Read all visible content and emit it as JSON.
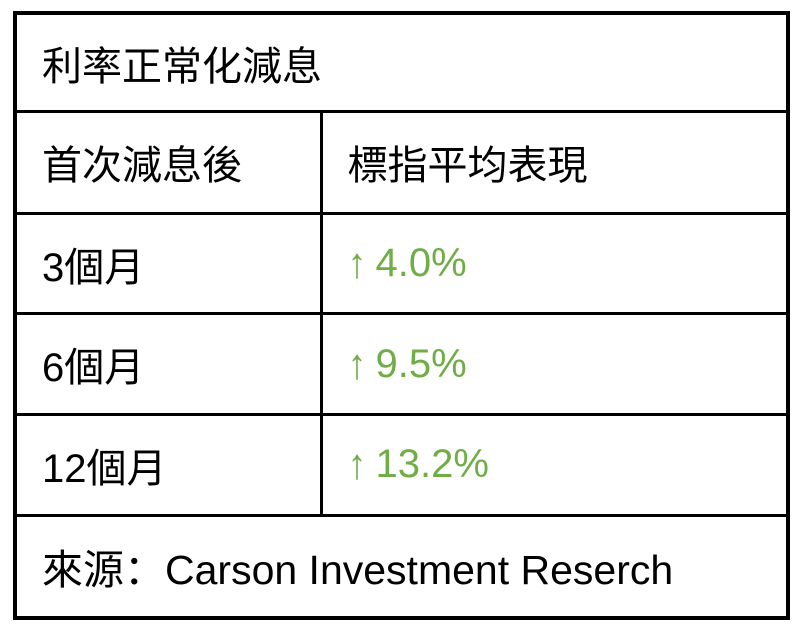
{
  "chart_data": {
    "type": "table",
    "title": "利率正常化減息",
    "columns": [
      "首次減息後",
      "標指平均表現"
    ],
    "rows": [
      {
        "period": "3個月",
        "direction": "up",
        "value": "4.0%"
      },
      {
        "period": "6個月",
        "direction": "up",
        "value": "9.5%"
      },
      {
        "period": "12個月",
        "direction": "up",
        "value": "13.2%"
      }
    ],
    "values_numeric": [
      4.0,
      9.5,
      13.2
    ],
    "source": "來源：Carson Investment Reserch"
  },
  "glyphs": {
    "up_arrow": "↑"
  },
  "colors": {
    "positive_green": "#70ad47",
    "border_black": "#000000",
    "text_black": "#000000",
    "background_white": "#ffffff"
  }
}
